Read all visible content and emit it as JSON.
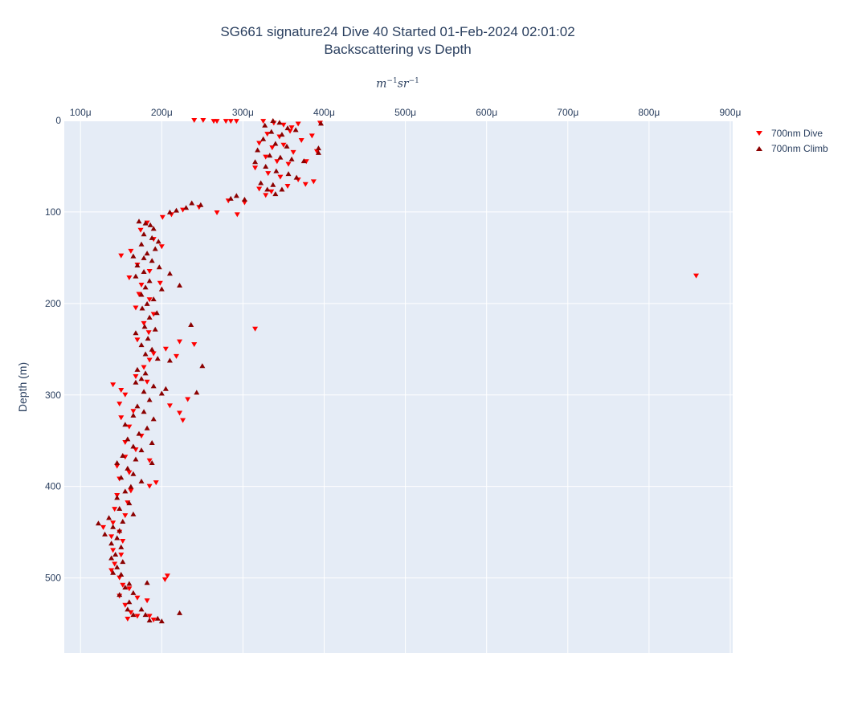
{
  "chart_data": {
    "type": "scatter",
    "title": "SG661 signature24 Dive 40 Started 01-Feb-2024 02:01:02",
    "subtitle": "Backscattering vs Depth",
    "xlabel_base_1": "m",
    "xlabel_exp_1": "−1",
    "xlabel_base_2": "sr",
    "xlabel_exp_2": "−1",
    "ylabel": "Depth (m)",
    "x_axis_position": "top",
    "y_reversed": true,
    "xlim": [
      8e-05,
      0.000903
    ],
    "ylim": [
      0,
      582
    ],
    "x_ticks": [
      0.0001,
      0.0002,
      0.0003,
      0.0004,
      0.0005,
      0.0006,
      0.0007,
      0.0008,
      0.0009
    ],
    "x_tick_labels": [
      "100μ",
      "200μ",
      "300μ",
      "400μ",
      "500μ",
      "600μ",
      "700μ",
      "800μ",
      "900μ"
    ],
    "y_ticks": [
      0,
      100,
      200,
      300,
      400,
      500
    ],
    "y_tick_labels": [
      "0",
      "100",
      "200",
      "300",
      "400",
      "500"
    ],
    "grid": true,
    "legend_position": "top-right",
    "series": [
      {
        "name": "700nm Dive",
        "marker": "triangle-down",
        "color": "#ff0000",
        "points": [
          [
            0.00024,
            0
          ],
          [
            0.000251,
            0
          ],
          [
            0.000264,
            1
          ],
          [
            0.000268,
            1
          ],
          [
            0.000279,
            1
          ],
          [
            0.000285,
            1
          ],
          [
            0.000292,
            1
          ],
          [
            0.000325,
            1
          ],
          [
            0.000338,
            3
          ],
          [
            0.00035,
            5
          ],
          [
            0.00036,
            8
          ],
          [
            0.000368,
            4
          ],
          [
            0.000395,
            3
          ],
          [
            0.00033,
            15
          ],
          [
            0.000345,
            18
          ],
          [
            0.000358,
            12
          ],
          [
            0.000372,
            22
          ],
          [
            0.000385,
            17
          ],
          [
            0.00032,
            25
          ],
          [
            0.000336,
            30
          ],
          [
            0.00035,
            27
          ],
          [
            0.000362,
            35
          ],
          [
            0.000391,
            34
          ],
          [
            0.000328,
            40
          ],
          [
            0.000342,
            45
          ],
          [
            0.000356,
            48
          ],
          [
            0.000378,
            45
          ],
          [
            0.000315,
            52
          ],
          [
            0.000331,
            58
          ],
          [
            0.000346,
            62
          ],
          [
            0.000368,
            65
          ],
          [
            0.000387,
            67
          ],
          [
            0.000377,
            70
          ],
          [
            0.00032,
            75
          ],
          [
            0.000335,
            78
          ],
          [
            0.000355,
            72
          ],
          [
            0.000328,
            82
          ],
          [
            0.000282,
            88
          ],
          [
            0.000302,
            90
          ],
          [
            0.000246,
            95
          ],
          [
            0.000268,
            101
          ],
          [
            0.000293,
            103
          ],
          [
            0.000226,
            98
          ],
          [
            0.000212,
            103
          ],
          [
            0.000201,
            106
          ],
          [
            0.000182,
            112
          ],
          [
            0.000174,
            120
          ],
          [
            0.00019,
            130
          ],
          [
            0.0002,
            138
          ],
          [
            0.000162,
            143
          ],
          [
            0.00015,
            148
          ],
          [
            0.00017,
            158
          ],
          [
            0.000185,
            165
          ],
          [
            0.00016,
            172
          ],
          [
            0.000175,
            180
          ],
          [
            0.000198,
            178
          ],
          [
            0.000172,
            190
          ],
          [
            0.000185,
            196
          ],
          [
            0.000168,
            205
          ],
          [
            0.00019,
            212
          ],
          [
            0.000178,
            222
          ],
          [
            0.000184,
            232
          ],
          [
            0.00017,
            240
          ],
          [
            0.000222,
            242
          ],
          [
            0.00024,
            245
          ],
          [
            0.000205,
            250
          ],
          [
            0.00019,
            255
          ],
          [
            0.000218,
            258
          ],
          [
            0.000185,
            262
          ],
          [
            0.000178,
            270
          ],
          [
            0.000168,
            280
          ],
          [
            0.000182,
            286
          ],
          [
            0.00014,
            289
          ],
          [
            0.00015,
            295
          ],
          [
            0.000155,
            300
          ],
          [
            0.000148,
            310
          ],
          [
            0.000232,
            305
          ],
          [
            0.00021,
            312
          ],
          [
            0.000165,
            318
          ],
          [
            0.000222,
            320
          ],
          [
            0.000226,
            328
          ],
          [
            0.00015,
            325
          ],
          [
            0.00016,
            335
          ],
          [
            0.000175,
            345
          ],
          [
            0.000155,
            352
          ],
          [
            0.000168,
            360
          ],
          [
            0.000155,
            368
          ],
          [
            0.000185,
            372
          ],
          [
            0.000145,
            378
          ],
          [
            0.00016,
            385
          ],
          [
            0.000148,
            392
          ],
          [
            0.000193,
            396
          ],
          [
            0.000185,
            400
          ],
          [
            0.000162,
            405
          ],
          [
            0.000145,
            410
          ],
          [
            0.000158,
            418
          ],
          [
            0.000142,
            425
          ],
          [
            0.000155,
            432
          ],
          [
            0.00014,
            440
          ],
          [
            0.000128,
            445
          ],
          [
            0.000148,
            450
          ],
          [
            0.000138,
            455
          ],
          [
            0.000152,
            460
          ],
          [
            0.00014,
            470
          ],
          [
            0.00015,
            475
          ],
          [
            0.000142,
            485
          ],
          [
            0.000138,
            492
          ],
          [
            0.000148,
            500
          ],
          [
            0.000207,
            498
          ],
          [
            0.000204,
            502
          ],
          [
            0.000152,
            508
          ],
          [
            0.00016,
            512
          ],
          [
            0.000148,
            520
          ],
          [
            0.00017,
            522
          ],
          [
            0.000182,
            525
          ],
          [
            0.000155,
            530
          ],
          [
            0.000162,
            538
          ],
          [
            0.00017,
            542
          ],
          [
            0.000158,
            545
          ],
          [
            0.000185,
            542
          ],
          [
            0.00019,
            546
          ],
          [
            0.000315,
            228
          ],
          [
            0.000858,
            170
          ]
        ]
      },
      {
        "name": "700nm Climb",
        "marker": "triangle-up",
        "color": "#8b0000",
        "points": [
          [
            0.000337,
            0
          ],
          [
            0.000327,
            5
          ],
          [
            0.000345,
            2
          ],
          [
            0.000355,
            8
          ],
          [
            0.000365,
            10
          ],
          [
            0.000396,
            3
          ],
          [
            0.000335,
            12
          ],
          [
            0.000348,
            15
          ],
          [
            0.000325,
            20
          ],
          [
            0.00034,
            25
          ],
          [
            0.000354,
            28
          ],
          [
            0.000393,
            30
          ],
          [
            0.000318,
            32
          ],
          [
            0.000333,
            38
          ],
          [
            0.000346,
            40
          ],
          [
            0.00036,
            42
          ],
          [
            0.000375,
            44
          ],
          [
            0.000393,
            35
          ],
          [
            0.000315,
            45
          ],
          [
            0.000328,
            50
          ],
          [
            0.000341,
            55
          ],
          [
            0.000356,
            58
          ],
          [
            0.000366,
            62
          ],
          [
            0.000322,
            68
          ],
          [
            0.000337,
            70
          ],
          [
            0.000348,
            75
          ],
          [
            0.00033,
            75
          ],
          [
            0.00034,
            80
          ],
          [
            0.000237,
            90
          ],
          [
            0.000248,
            92
          ],
          [
            0.00023,
            95
          ],
          [
            0.000218,
            98
          ],
          [
            0.00021,
            100
          ],
          [
            0.000285,
            85
          ],
          [
            0.000292,
            82
          ],
          [
            0.000302,
            86
          ],
          [
            0.000172,
            110
          ],
          [
            0.00018,
            112
          ],
          [
            0.000186,
            114
          ],
          [
            0.00019,
            118
          ],
          [
            0.000178,
            124
          ],
          [
            0.000188,
            128
          ],
          [
            0.000196,
            132
          ],
          [
            0.000175,
            135
          ],
          [
            0.000192,
            140
          ],
          [
            0.000182,
            145
          ],
          [
            0.000165,
            148
          ],
          [
            0.000178,
            150
          ],
          [
            0.000188,
            153
          ],
          [
            0.00017,
            158
          ],
          [
            0.000197,
            160
          ],
          [
            0.000178,
            165
          ],
          [
            0.00021,
            167
          ],
          [
            0.000168,
            170
          ],
          [
            0.000185,
            175
          ],
          [
            0.000222,
            180
          ],
          [
            0.00018,
            182
          ],
          [
            0.0002,
            184
          ],
          [
            0.000175,
            190
          ],
          [
            0.00019,
            195
          ],
          [
            0.000182,
            200
          ],
          [
            0.000176,
            205
          ],
          [
            0.000194,
            210
          ],
          [
            0.000185,
            215
          ],
          [
            0.000236,
            223
          ],
          [
            0.000179,
            225
          ],
          [
            0.000192,
            228
          ],
          [
            0.000168,
            232
          ],
          [
            0.000183,
            238
          ],
          [
            0.000175,
            245
          ],
          [
            0.000188,
            250
          ],
          [
            0.00018,
            255
          ],
          [
            0.000195,
            260
          ],
          [
            0.00021,
            262
          ],
          [
            0.00025,
            268
          ],
          [
            0.00017,
            272
          ],
          [
            0.00018,
            276
          ],
          [
            0.000175,
            282
          ],
          [
            0.000168,
            286
          ],
          [
            0.00019,
            290
          ],
          [
            0.000205,
            293
          ],
          [
            0.000178,
            296
          ],
          [
            0.0002,
            298
          ],
          [
            0.000243,
            297
          ],
          [
            0.000185,
            305
          ],
          [
            0.00017,
            312
          ],
          [
            0.000178,
            318
          ],
          [
            0.000165,
            322
          ],
          [
            0.00019,
            326
          ],
          [
            0.000155,
            332
          ],
          [
            0.000182,
            336
          ],
          [
            0.000172,
            342
          ],
          [
            0.000158,
            348
          ],
          [
            0.000188,
            352
          ],
          [
            0.000165,
            356
          ],
          [
            0.000175,
            360
          ],
          [
            0.000152,
            366
          ],
          [
            0.000168,
            370
          ],
          [
            0.000145,
            374
          ],
          [
            0.000188,
            374
          ],
          [
            0.000158,
            380
          ],
          [
            0.000165,
            386
          ],
          [
            0.00015,
            390
          ],
          [
            0.000175,
            394
          ],
          [
            0.000162,
            400
          ],
          [
            0.000155,
            405
          ],
          [
            0.000145,
            412
          ],
          [
            0.00016,
            418
          ],
          [
            0.000148,
            424
          ],
          [
            0.000165,
            430
          ],
          [
            0.000135,
            434
          ],
          [
            0.000152,
            438
          ],
          [
            0.000122,
            440
          ],
          [
            0.00014,
            444
          ],
          [
            0.000148,
            448
          ],
          [
            0.00013,
            452
          ],
          [
            0.000145,
            456
          ],
          [
            0.000138,
            462
          ],
          [
            0.00015,
            466
          ],
          [
            0.000143,
            474
          ],
          [
            0.000138,
            478
          ],
          [
            0.000152,
            482
          ],
          [
            0.000145,
            488
          ],
          [
            0.00014,
            494
          ],
          [
            0.00015,
            496
          ],
          [
            0.00016,
            506
          ],
          [
            0.000155,
            510
          ],
          [
            0.000165,
            516
          ],
          [
            0.000148,
            518
          ],
          [
            0.000182,
            505
          ],
          [
            0.00016,
            526
          ],
          [
            0.000175,
            534
          ],
          [
            0.000165,
            540
          ],
          [
            0.000185,
            546
          ],
          [
            0.000195,
            544
          ],
          [
            0.000222,
            538
          ],
          [
            0.0002,
            547
          ],
          [
            0.00018,
            540
          ],
          [
            0.000158,
            534
          ]
        ]
      }
    ]
  }
}
